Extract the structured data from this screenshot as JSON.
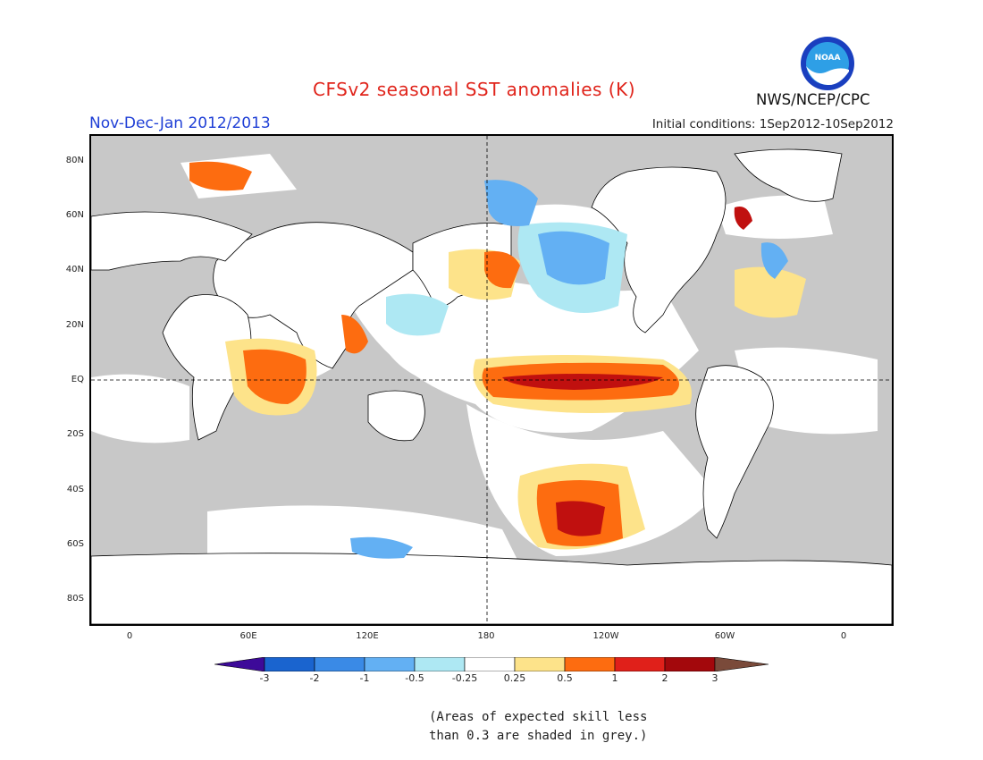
{
  "header": {
    "title": "CFSv2 seasonal SST anomalies (K)",
    "period": "Nov-Dec-Jan 2012/2013",
    "initial_conditions": "Initial conditions: 1Sep2012-10Sep2012",
    "agency": "NWS/NCEP/CPC",
    "logo_text": "NOAA"
  },
  "map": {
    "lat_labels": [
      "80N",
      "60N",
      "40N",
      "20N",
      "EQ",
      "20S",
      "40S",
      "60S",
      "80S"
    ],
    "lon_labels": [
      "0",
      "60E",
      "120E",
      "180",
      "120W",
      "60W",
      "0"
    ]
  },
  "colorbar": {
    "labels": [
      "-3",
      "-2",
      "-1",
      "-0.5",
      "-0.25",
      "0.25",
      "0.5",
      "1",
      "2",
      "3"
    ],
    "colors": [
      "#3d0a99",
      "#1a64cf",
      "#3a8ae6",
      "#63b0f3",
      "#aee8f3",
      "#ffffff",
      "#fde38a",
      "#fd6c10",
      "#e0201a",
      "#a3080c",
      "#7a4a3a"
    ]
  },
  "footnote": {
    "line1": "(Areas of expected skill less",
    "line2": "than 0.3 are shaded in grey.)"
  },
  "colors": {
    "title": "#e0241b",
    "period": "#1f3fd6",
    "land": "#ffffff",
    "grey_skill": "#c8c8c8"
  }
}
